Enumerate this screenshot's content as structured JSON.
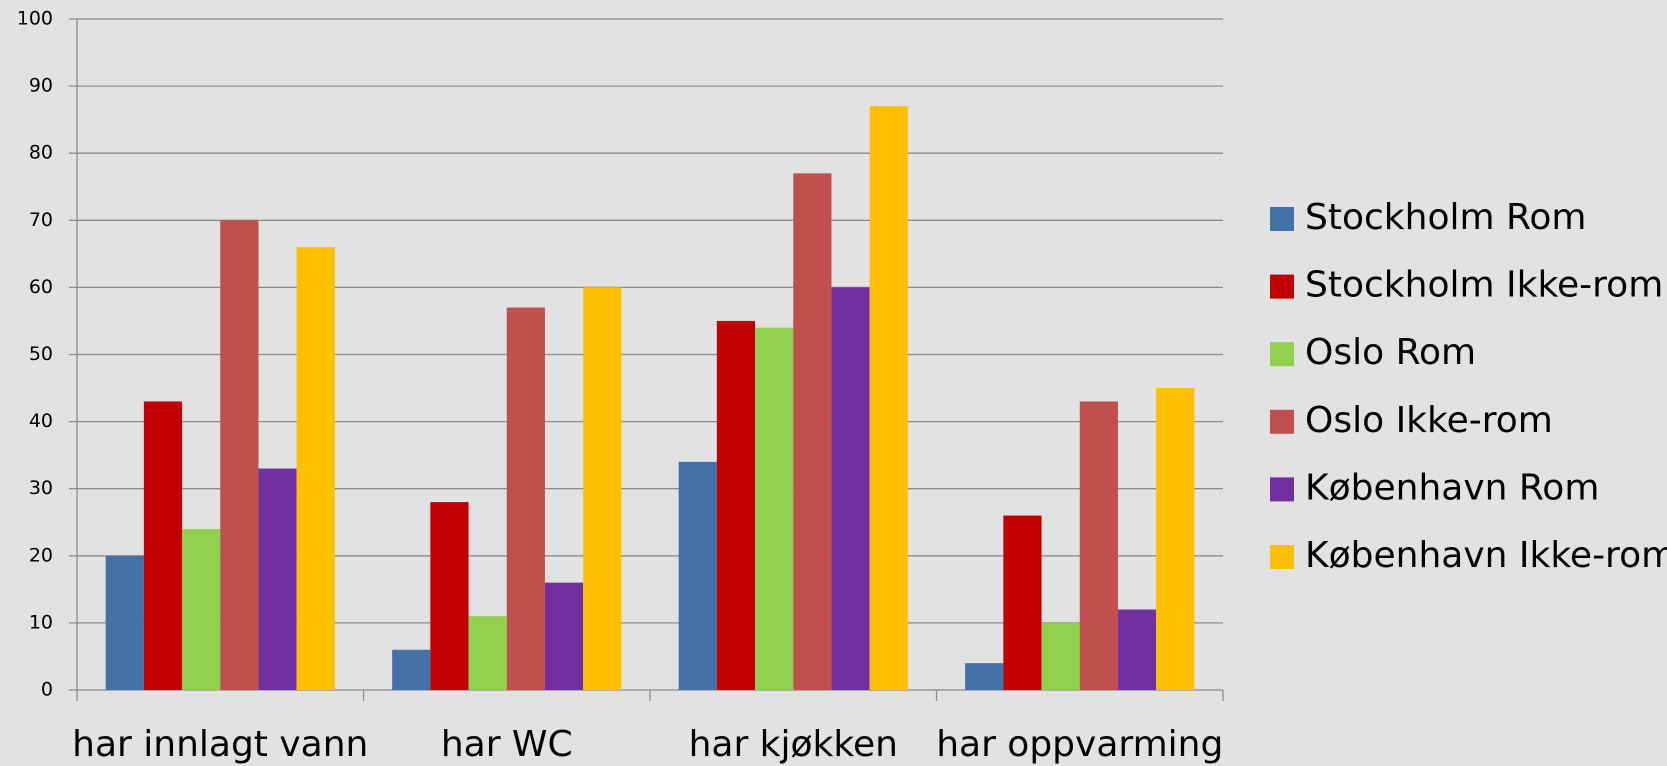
{
  "chart_data": {
    "type": "bar",
    "categories": [
      "har innlagt vann",
      "har WC",
      "har kjøkken",
      "har oppvarming"
    ],
    "series": [
      {
        "name": "Stockholm Rom",
        "color": "#4472a8",
        "values": [
          20,
          6,
          34,
          4
        ]
      },
      {
        "name": "Stockholm Ikke-rom",
        "color": "#c00000",
        "values": [
          43,
          28,
          55,
          26
        ]
      },
      {
        "name": "Oslo Rom",
        "color": "#92d050",
        "values": [
          24,
          11,
          54,
          10
        ]
      },
      {
        "name": "Oslo Ikke-rom",
        "color": "#c0504d",
        "values": [
          70,
          57,
          77,
          43
        ]
      },
      {
        "name": "København Rom",
        "color": "#7030a0",
        "values": [
          33,
          16,
          60,
          12
        ]
      },
      {
        "name": "København Ikke-rom",
        "color": "#ffc000",
        "values": [
          66,
          60,
          87,
          45
        ]
      }
    ],
    "ylim": [
      0,
      100
    ],
    "yticks": [
      0,
      10,
      20,
      30,
      40,
      50,
      60,
      70,
      80,
      90,
      100
    ],
    "grid": true,
    "legend": "right"
  }
}
